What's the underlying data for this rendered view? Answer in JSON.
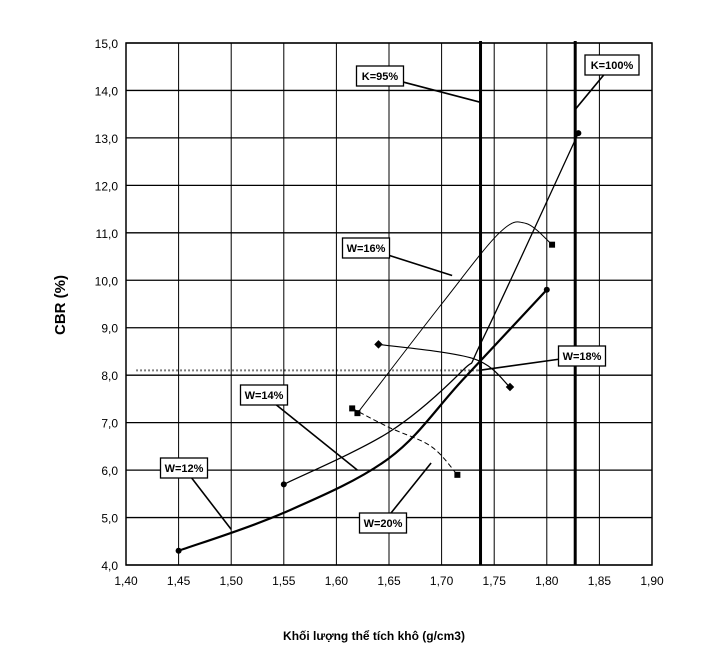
{
  "chart_data": {
    "type": "line",
    "xlabel": "Khối lượng thể tích khô (g/cm3)",
    "ylabel": "CBR (%)",
    "xlim": [
      1.4,
      1.9
    ],
    "ylim": [
      4.0,
      15.0
    ],
    "x_ticks": [
      "1,40",
      "1,45",
      "1,50",
      "1,55",
      "1,60",
      "1,65",
      "1,70",
      "1,75",
      "1,80",
      "1,85",
      "1,90"
    ],
    "y_ticks": [
      "4,0",
      "5,0",
      "6,0",
      "7,0",
      "8,0",
      "9,0",
      "10,0",
      "11,0",
      "12,0",
      "13,0",
      "14,0",
      "15,0"
    ],
    "grid": true,
    "series": [
      {
        "name": "W=12%",
        "x": [
          1.45,
          1.55,
          1.65,
          1.72,
          1.8
        ],
        "y": [
          4.3,
          5.1,
          6.25,
          7.9,
          9.8
        ]
      },
      {
        "name": "W=14%",
        "x": [
          1.55,
          1.65,
          1.72,
          1.74,
          1.83
        ],
        "y": [
          5.7,
          6.8,
          8.1,
          8.8,
          13.1
        ]
      },
      {
        "name": "W=16%",
        "x": [
          1.62,
          1.7,
          1.755,
          1.78,
          1.805
        ],
        "y": [
          7.2,
          9.5,
          11.0,
          11.2,
          10.75
        ]
      },
      {
        "name": "W=18%",
        "x": [
          1.64,
          1.73,
          1.765
        ],
        "y": [
          8.65,
          8.35,
          7.75
        ]
      },
      {
        "name": "W=20%",
        "x": [
          1.615,
          1.65,
          1.69,
          1.715
        ],
        "y": [
          7.3,
          6.9,
          6.5,
          5.9
        ]
      }
    ],
    "reference_lines": [
      {
        "label": "K=95%",
        "x": 1.737
      },
      {
        "label": "K=100%",
        "x": 1.827
      },
      {
        "label": "",
        "y": 8.1,
        "style": "dotted",
        "x_from": 1.41,
        "x_to": 1.737
      }
    ]
  }
}
